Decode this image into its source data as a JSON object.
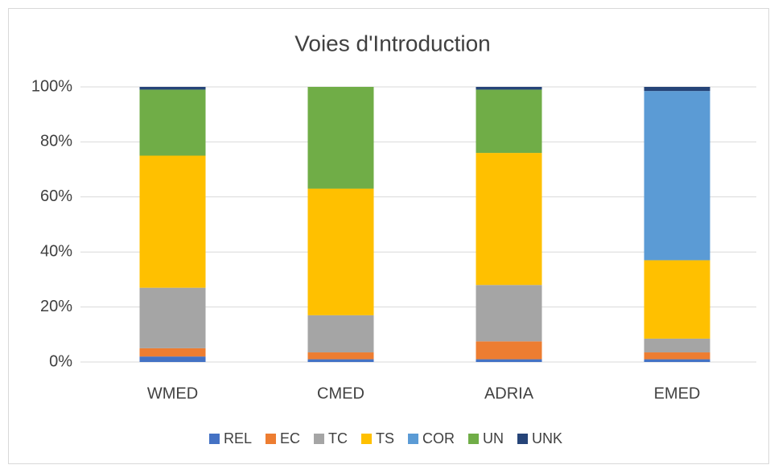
{
  "chart_data": {
    "type": "bar",
    "stacked": true,
    "title": "Voies d'Introduction",
    "categories": [
      "WMED",
      "CMED",
      "ADRIA",
      "EMED"
    ],
    "series": [
      {
        "name": "REL",
        "color": "#4472c4",
        "values": [
          2,
          1,
          1,
          1
        ]
      },
      {
        "name": "EC",
        "color": "#ed7d31",
        "values": [
          3,
          2.5,
          6.5,
          2.5
        ]
      },
      {
        "name": "TC",
        "color": "#a5a5a5",
        "values": [
          22,
          13.5,
          20.5,
          5
        ]
      },
      {
        "name": "TS",
        "color": "#ffc000",
        "values": [
          48,
          46,
          48,
          28.5
        ]
      },
      {
        "name": "COR",
        "color": "#5b9bd5",
        "values": [
          0,
          0,
          0,
          61.5
        ]
      },
      {
        "name": "UN",
        "color": "#70ad47",
        "values": [
          24,
          37,
          23,
          0
        ]
      },
      {
        "name": "UNK",
        "color": "#264478",
        "values": [
          1,
          0,
          1,
          1.5
        ]
      }
    ],
    "ylim": [
      0,
      100
    ],
    "yticks": [
      {
        "value": 0,
        "label": "0%"
      },
      {
        "value": 20,
        "label": "20%"
      },
      {
        "value": 40,
        "label": "40%"
      },
      {
        "value": 60,
        "label": "60%"
      },
      {
        "value": 80,
        "label": "80%"
      },
      {
        "value": 100,
        "label": "100%"
      }
    ],
    "grid": true,
    "legend": "bottom"
  }
}
